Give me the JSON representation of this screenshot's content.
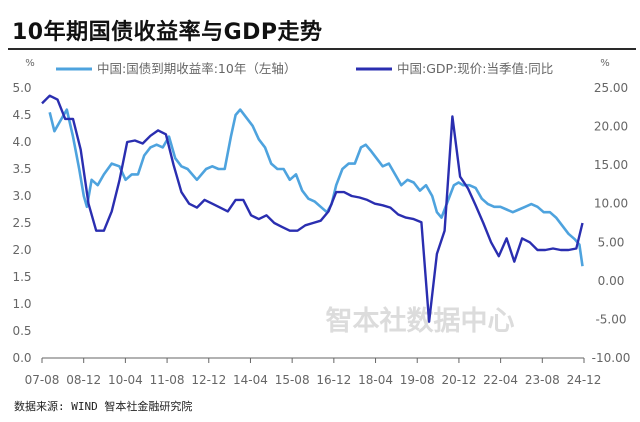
{
  "title": "10年期国债收益率与GDP走势",
  "source": "数据来源: WIND 智本社金融研究院",
  "watermark": "智本社数据中心",
  "colors": {
    "bond": "#4ea3de",
    "gdp": "#2a2eb0",
    "axis": "#666666",
    "watermark": "#dcdcdc"
  },
  "chart_data": {
    "type": "line",
    "title": "10年期国债收益率与GDP走势",
    "legend_position": "top",
    "y_left": {
      "unit": "%",
      "range": [
        0,
        5
      ],
      "ticks": [
        "5.0",
        "4.5",
        "4.0",
        "3.5",
        "3.0",
        "2.5",
        "2.0",
        "1.5",
        "1.0",
        "0.5",
        "0.0"
      ]
    },
    "y_right": {
      "unit": "%",
      "range": [
        -10,
        25
      ],
      "ticks": [
        "25.00",
        "20.00",
        "15.00",
        "10.00",
        "5.00",
        "0.00",
        "-5.00",
        "-10.00"
      ]
    },
    "x": {
      "range": [
        2007.5,
        2025.0
      ],
      "tick_labels": [
        "07-08",
        "08-12",
        "10-04",
        "11-08",
        "12-12",
        "14-04",
        "15-08",
        "16-12",
        "18-04",
        "19-08",
        "20-12",
        "22-04",
        "23-08",
        "24-12"
      ]
    },
    "series": [
      {
        "name": "中国:国债到期收益率:10年（左轴）",
        "axis": "left",
        "x": [
          2007.75,
          2007.9,
          2008.1,
          2008.3,
          2008.5,
          2008.7,
          2008.85,
          2008.95,
          2009.1,
          2009.3,
          2009.5,
          2009.75,
          2010.0,
          2010.2,
          2010.4,
          2010.6,
          2010.8,
          2011.0,
          2011.2,
          2011.4,
          2011.6,
          2011.8,
          2012.0,
          2012.2,
          2012.5,
          2012.8,
          2013.0,
          2013.2,
          2013.4,
          2013.6,
          2013.75,
          2013.9,
          2014.1,
          2014.3,
          2014.5,
          2014.7,
          2014.9,
          2015.1,
          2015.3,
          2015.5,
          2015.7,
          2015.9,
          2016.1,
          2016.3,
          2016.5,
          2016.7,
          2016.85,
          2017.0,
          2017.2,
          2017.4,
          2017.6,
          2017.8,
          2017.95,
          2018.1,
          2018.3,
          2018.5,
          2018.7,
          2018.9,
          2019.1,
          2019.3,
          2019.5,
          2019.7,
          2019.9,
          2020.1,
          2020.25,
          2020.4,
          2020.6,
          2020.8,
          2020.95,
          2021.1,
          2021.3,
          2021.5,
          2021.7,
          2021.9,
          2022.1,
          2022.3,
          2022.5,
          2022.7,
          2022.9,
          2023.1,
          2023.3,
          2023.5,
          2023.7,
          2023.9,
          2024.1,
          2024.3,
          2024.5,
          2024.7,
          2024.85,
          2024.95
        ],
        "y": [
          4.55,
          4.2,
          4.4,
          4.6,
          4.1,
          3.5,
          3.0,
          2.8,
          3.3,
          3.2,
          3.4,
          3.6,
          3.55,
          3.3,
          3.4,
          3.4,
          3.75,
          3.9,
          3.95,
          3.9,
          4.1,
          3.7,
          3.55,
          3.5,
          3.3,
          3.5,
          3.55,
          3.5,
          3.5,
          4.1,
          4.5,
          4.6,
          4.45,
          4.3,
          4.05,
          3.9,
          3.6,
          3.5,
          3.5,
          3.3,
          3.4,
          3.1,
          2.95,
          2.9,
          2.8,
          2.7,
          2.85,
          3.2,
          3.5,
          3.6,
          3.6,
          3.9,
          3.95,
          3.85,
          3.7,
          3.55,
          3.6,
          3.4,
          3.2,
          3.3,
          3.25,
          3.1,
          3.2,
          3.0,
          2.7,
          2.6,
          2.9,
          3.2,
          3.25,
          3.2,
          3.2,
          3.15,
          2.95,
          2.85,
          2.8,
          2.8,
          2.75,
          2.7,
          2.75,
          2.8,
          2.85,
          2.8,
          2.7,
          2.7,
          2.6,
          2.45,
          2.3,
          2.2,
          2.1,
          1.7
        ]
      },
      {
        "name": "中国:GDP:现价:当季值:同比",
        "axis": "right",
        "x": [
          2007.5,
          2007.75,
          2008.0,
          2008.25,
          2008.5,
          2008.75,
          2009.0,
          2009.25,
          2009.5,
          2009.75,
          2010.0,
          2010.25,
          2010.5,
          2010.75,
          2011.0,
          2011.25,
          2011.5,
          2011.75,
          2012.0,
          2012.25,
          2012.5,
          2012.75,
          2013.0,
          2013.25,
          2013.5,
          2013.75,
          2014.0,
          2014.25,
          2014.5,
          2014.75,
          2015.0,
          2015.25,
          2015.5,
          2015.75,
          2016.0,
          2016.25,
          2016.5,
          2016.75,
          2017.0,
          2017.25,
          2017.5,
          2017.75,
          2018.0,
          2018.25,
          2018.5,
          2018.75,
          2019.0,
          2019.25,
          2019.5,
          2019.75,
          2020.0,
          2020.25,
          2020.5,
          2020.75,
          2021.0,
          2021.25,
          2021.5,
          2021.75,
          2022.0,
          2022.25,
          2022.5,
          2022.75,
          2023.0,
          2023.25,
          2023.5,
          2023.75,
          2024.0,
          2024.25,
          2024.5,
          2024.75,
          2024.95
        ],
        "y": [
          23.0,
          24.0,
          23.5,
          21.0,
          21.0,
          17.0,
          10.0,
          6.5,
          6.5,
          9.0,
          13.0,
          18.0,
          18.2,
          17.8,
          18.8,
          19.5,
          19.0,
          15.0,
          11.5,
          10.0,
          9.5,
          10.5,
          10.0,
          9.5,
          9.0,
          10.5,
          10.5,
          8.5,
          8.0,
          8.5,
          7.5,
          7.0,
          6.5,
          6.5,
          7.2,
          7.5,
          7.8,
          9.0,
          11.5,
          11.5,
          11.0,
          10.8,
          10.5,
          10.0,
          9.8,
          9.5,
          8.6,
          8.2,
          8.0,
          7.6,
          -5.3,
          3.5,
          6.5,
          21.3,
          13.5,
          12.0,
          9.8,
          7.5,
          5.0,
          3.2,
          5.5,
          2.5,
          5.5,
          5.0,
          4.0,
          4.0,
          4.2,
          4.0,
          4.0,
          4.2,
          7.5
        ]
      }
    ]
  }
}
